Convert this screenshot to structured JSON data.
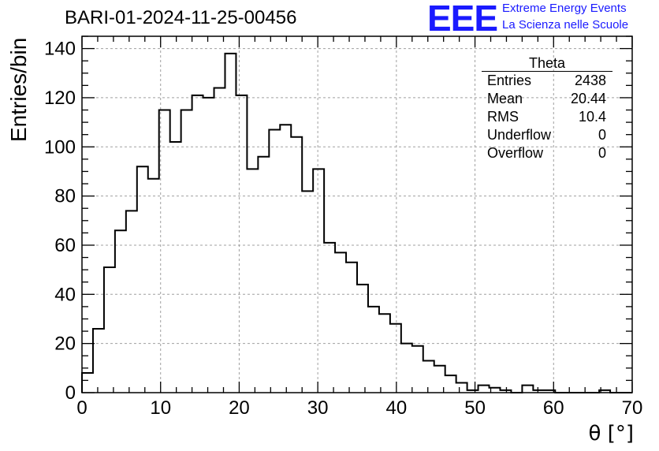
{
  "title": "BARI-01-2024-11-25-00456",
  "logo": {
    "mark": "EEE",
    "line1": "Extreme Energy Events",
    "line2": "La Scienza nelle Scuole",
    "color": "#1a1aff"
  },
  "stats_box": {
    "title": "Theta",
    "rows": [
      {
        "label": "Entries",
        "value": "2438"
      },
      {
        "label": "Mean",
        "value": "20.44"
      },
      {
        "label": "RMS",
        "value": "10.4"
      },
      {
        "label": "Underflow",
        "value": "0"
      },
      {
        "label": "Overflow",
        "value": "0"
      }
    ]
  },
  "chart_data": {
    "type": "bar",
    "style": "step-histogram",
    "xlabel": "θ [°]",
    "ylabel": "Entries/bin",
    "xlim": [
      0,
      70
    ],
    "ylim": [
      0,
      145
    ],
    "bin_width": 1.4,
    "x_ticks": [
      0,
      10,
      20,
      30,
      40,
      50,
      60,
      70
    ],
    "y_ticks": [
      0,
      20,
      40,
      60,
      80,
      100,
      120,
      140
    ],
    "grid": true,
    "values": [
      8,
      26,
      51,
      66,
      74,
      92,
      87,
      115,
      102,
      115,
      121,
      120,
      124,
      138,
      121,
      91,
      96,
      107,
      109,
      104,
      82,
      91,
      61,
      57,
      53,
      44,
      35,
      32,
      28,
      20,
      19,
      13,
      11,
      7,
      4,
      1,
      3,
      2,
      1,
      0,
      3,
      1,
      1,
      0,
      0,
      0,
      0,
      1,
      0,
      0
    ],
    "line_color": "#000000",
    "grid_color": "#a0a0a0"
  }
}
